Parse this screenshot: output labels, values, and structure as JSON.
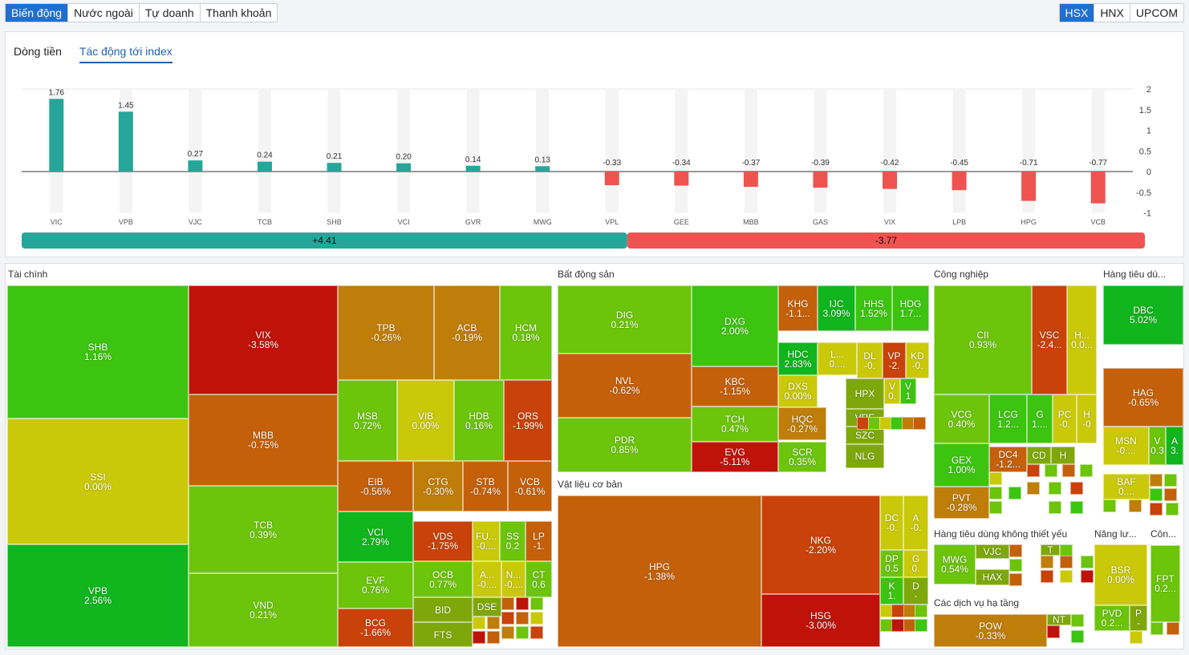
{
  "left_tabs": [
    "Biến động",
    "Nước ngoài",
    "Tự doanh",
    "Thanh khoản"
  ],
  "exchange_tabs": [
    "HSX",
    "HNX",
    "UPCOM"
  ],
  "sub_tabs": [
    "Dòng tiền",
    "Tác động tới index"
  ],
  "colors": {
    "positive": "#26a69a",
    "negative": "#ef5350",
    "active": "#1f6fd1"
  },
  "chart_data": {
    "type": "bar",
    "categories": [
      "VIC",
      "VPB",
      "VJC",
      "TCB",
      "SHB",
      "VCI",
      "GVR",
      "MWG",
      "VPL",
      "GEE",
      "MBB",
      "GAS",
      "VIX",
      "LPB",
      "HPG",
      "VCB"
    ],
    "values": [
      1.76,
      1.45,
      0.27,
      0.24,
      0.21,
      0.2,
      0.14,
      0.13,
      -0.33,
      -0.34,
      -0.37,
      -0.39,
      -0.42,
      -0.45,
      -0.71,
      -0.77
    ],
    "value_labels": [
      "1.76",
      "1.45",
      "0.27",
      "0.24",
      "0.21",
      "0.20",
      "0.14",
      "0.13",
      "-0.33",
      "-0.34",
      "-0.37",
      "-0.39",
      "-0.42",
      "-0.45",
      "-0.71",
      "-0.77"
    ],
    "yticks": [
      "2",
      "1.5",
      "1",
      "0.5",
      "0",
      "-0.5",
      "-1"
    ],
    "ylim": [
      -1,
      2
    ],
    "total_positive": "+4.41",
    "total_negative": "-3.77"
  },
  "treemap": {
    "sectors": [
      "Tài chính",
      "Bất động sản",
      "Vật liệu cơ bản",
      "Công nghiệp",
      "Hàng tiêu dù...",
      "Hàng tiêu dùng không thiết yếu",
      "Các dịch vụ hạ tầng",
      "Năng lư...",
      "Côn..."
    ],
    "tiles": [
      [
        "SHB",
        "1.16%"
      ],
      [
        "SSI",
        "0.00%"
      ],
      [
        "VPB",
        "2.56%"
      ],
      [
        "VIX",
        "-3.58%"
      ],
      [
        "MBB",
        "-0.75%"
      ],
      [
        "TCB",
        "0.39%"
      ],
      [
        "VND",
        "0.21%"
      ],
      [
        "TPB",
        "-0.26%"
      ],
      [
        "ACB",
        "-0.19%"
      ],
      [
        "HCM",
        "0.18%"
      ],
      [
        "MSB",
        "0.72%"
      ],
      [
        "VIB",
        "0.00%"
      ],
      [
        "HDB",
        "0.16%"
      ],
      [
        "ORS",
        "-1.99%"
      ],
      [
        "EIB",
        "-0.56%"
      ],
      [
        "CTG",
        "-0.30%"
      ],
      [
        "STB",
        "-0.74%"
      ],
      [
        "VCB",
        "-0.61%"
      ],
      [
        "VCI",
        "2.79%"
      ],
      [
        "VDS",
        "-1.75%"
      ],
      [
        "FU...",
        "-0...."
      ],
      [
        "SS",
        "0.2"
      ],
      [
        "LP",
        "-1."
      ],
      [
        "EVF",
        "0.76%"
      ],
      [
        "OCB",
        "0.77%"
      ],
      [
        "A...",
        "-0...."
      ],
      [
        "N...",
        "-0...."
      ],
      [
        "CT",
        "0.6"
      ],
      [
        "BCG",
        "-1.66%"
      ],
      [
        "BID",
        ""
      ],
      [
        "DSE",
        ""
      ],
      [
        "FTS",
        ""
      ],
      [
        "DIG",
        "0.21%"
      ],
      [
        "DXG",
        "2.00%"
      ],
      [
        "KHG",
        "-1.1..."
      ],
      [
        "IJC",
        "3.09%"
      ],
      [
        "HHS",
        "1.52%"
      ],
      [
        "HDG",
        "1.7..."
      ],
      [
        "NVL",
        "-0.62%"
      ],
      [
        "KBC",
        "-1.15%"
      ],
      [
        "HDC",
        "2.83%"
      ],
      [
        "L...",
        "0...."
      ],
      [
        "DL",
        "-0."
      ],
      [
        "VP",
        "-2."
      ],
      [
        "KD",
        "-0."
      ],
      [
        "DXS",
        "0.00%"
      ],
      [
        "HPX",
        ""
      ],
      [
        "V",
        "0."
      ],
      [
        "V",
        "1"
      ],
      [
        "PDR",
        "0.85%"
      ],
      [
        "TCH",
        "0.47%"
      ],
      [
        "HQC",
        "-0.27%"
      ],
      [
        "VRE",
        ""
      ],
      [
        "SZC",
        ""
      ],
      [
        "EVG",
        "-5.11%"
      ],
      [
        "SCR",
        "0.35%"
      ],
      [
        "NLG",
        ""
      ],
      [
        "HPG",
        "-1.38%"
      ],
      [
        "NKG",
        "-2.20%"
      ],
      [
        "HSG",
        "-3.00%"
      ],
      [
        "DC",
        "-0."
      ],
      [
        "A",
        "-0."
      ],
      [
        "DP",
        "0.5"
      ],
      [
        "G",
        "0."
      ],
      [
        "K",
        "1."
      ],
      [
        "D",
        "-"
      ],
      [
        "CII",
        "0.93%"
      ],
      [
        "VSC",
        "-2.4..."
      ],
      [
        "H...",
        "0.0..."
      ],
      [
        "VCG",
        "0.40%"
      ],
      [
        "LCG",
        "1.2..."
      ],
      [
        "G",
        "1...."
      ],
      [
        "PC",
        "-0."
      ],
      [
        "H",
        "-0"
      ],
      [
        "GEX",
        "1.00%"
      ],
      [
        "DC4",
        "-1.2..."
      ],
      [
        "CD",
        ""
      ],
      [
        "H",
        ""
      ],
      [
        "PVT",
        "-0.28%"
      ],
      [
        "DBC",
        "5.02%"
      ],
      [
        "HAG",
        "-0.65%"
      ],
      [
        "MSN",
        "-0...."
      ],
      [
        "V",
        "0.3"
      ],
      [
        "A",
        "3."
      ],
      [
        "BAF",
        "0...."
      ],
      [
        "MWG",
        "0.54%"
      ],
      [
        "VJC",
        ""
      ],
      [
        "HAX",
        ""
      ],
      [
        "T",
        ""
      ],
      [
        "POW",
        "-0.33%"
      ],
      [
        "NT",
        ""
      ],
      [
        "BSR",
        "0.00%"
      ],
      [
        "PVD",
        "0.2..."
      ],
      [
        "P",
        "-"
      ],
      [
        "FPT",
        "0.2..."
      ]
    ]
  }
}
